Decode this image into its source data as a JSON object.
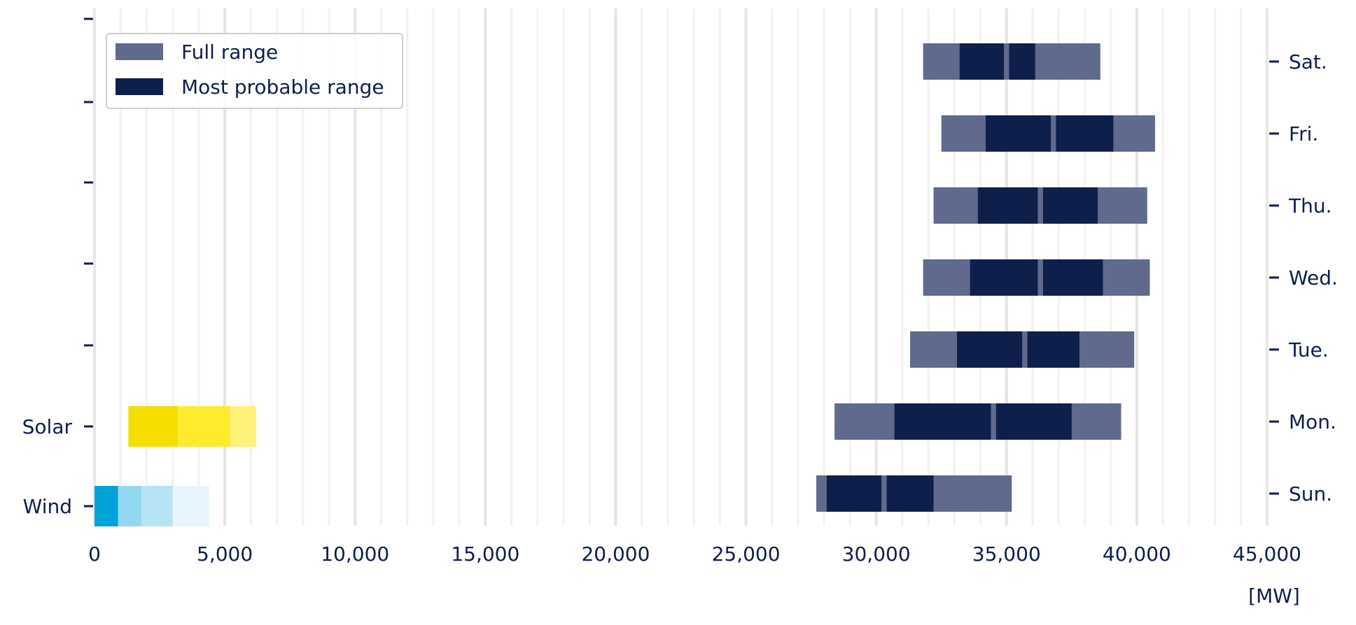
{
  "chart_data": {
    "type": "bar",
    "chart_kind": "horizontal floating range bars",
    "xlabel": "[MW]",
    "xlim": [
      0,
      45000
    ],
    "xticks": [
      0,
      5000,
      10000,
      15000,
      20000,
      25000,
      30000,
      35000,
      40000,
      45000
    ],
    "xtick_labels": [
      "0",
      "5,000",
      "10,000",
      "15,000",
      "20,000",
      "25,000",
      "30,000",
      "35,000",
      "40,000",
      "45,000"
    ],
    "grid": true,
    "legend_position": "top-left",
    "legend": [
      {
        "label": "Full range",
        "color": "#5f6a8c"
      },
      {
        "label": "Most probable range",
        "color": "#0f1f4b"
      }
    ],
    "demand": {
      "axis": "right",
      "categories": [
        "Sat.",
        "Fri.",
        "Thu.",
        "Wed.",
        "Tue.",
        "Mon.",
        "Sun."
      ],
      "full_range": [
        [
          31800,
          38600
        ],
        [
          32500,
          40700
        ],
        [
          32200,
          40400
        ],
        [
          31800,
          40500
        ],
        [
          31300,
          39900
        ],
        [
          28400,
          39400
        ],
        [
          27700,
          35200
        ]
      ],
      "most_probable_segments": [
        [
          [
            33200,
            34900
          ],
          [
            35100,
            36100
          ]
        ],
        [
          [
            34200,
            36700
          ],
          [
            36900,
            39100
          ]
        ],
        [
          [
            33900,
            36200
          ],
          [
            36400,
            38500
          ]
        ],
        [
          [
            33600,
            36200
          ],
          [
            36400,
            38700
          ]
        ],
        [
          [
            33100,
            35600
          ],
          [
            35800,
            37800
          ]
        ],
        [
          [
            30700,
            34400
          ],
          [
            34600,
            37500
          ]
        ],
        [
          [
            28100,
            30200
          ],
          [
            30400,
            32200
          ]
        ]
      ]
    },
    "renewables": {
      "axis": "left",
      "categories": [
        "Solar",
        "Wind"
      ],
      "segments": {
        "Solar": [
          {
            "range": [
              1300,
              3200
            ],
            "color": "#f5dd00"
          },
          {
            "range": [
              3200,
              5200
            ],
            "color": "#ffea2e"
          },
          {
            "range": [
              5200,
              6200
            ],
            "color": "#fff27a"
          }
        ],
        "Wind": [
          {
            "range": [
              0,
              900
            ],
            "color": "#00a2db"
          },
          {
            "range": [
              900,
              1800
            ],
            "color": "#92d8f0"
          },
          {
            "range": [
              1800,
              3000
            ],
            "color": "#b7e4f5"
          },
          {
            "range": [
              3000,
              4400
            ],
            "color": "#e7f5fc"
          }
        ]
      }
    }
  },
  "colors": {
    "text": "#0f1f4b",
    "grid_minor": "#f1f1f1",
    "grid_major": "#e4e4e4",
    "spine": "#e9e9e9"
  }
}
